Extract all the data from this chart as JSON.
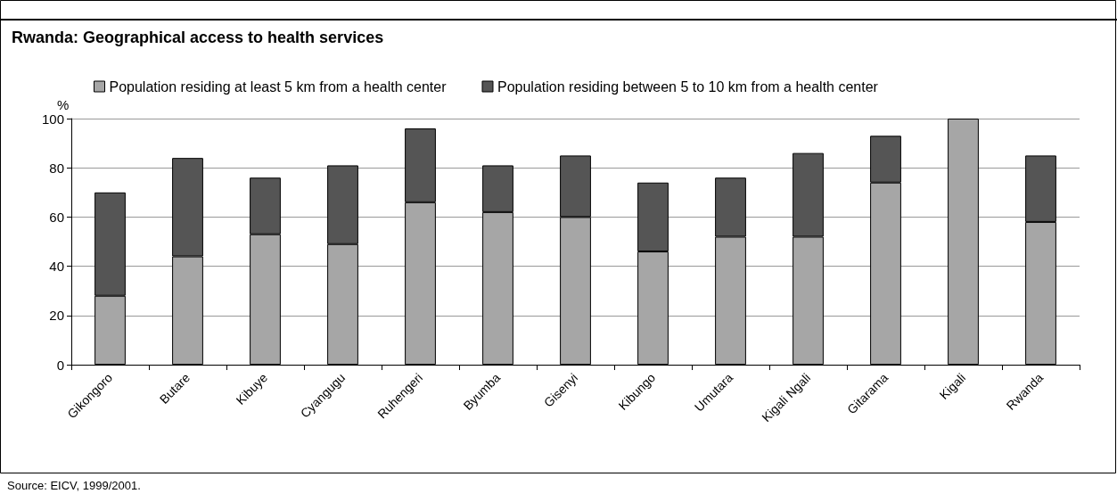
{
  "chart_data": {
    "type": "bar",
    "title": "Rwanda: Geographical access to health services",
    "ylabel": "%",
    "categories": [
      "Gikongoro",
      "Butare",
      "Kibuye",
      "Cyangugu",
      "Ruhengeri",
      "Byumba",
      "Gisenyi",
      "Kibungo",
      "Umutara",
      "Kigali Ngali",
      "Gitarama",
      "Kigali",
      "Rwanda"
    ],
    "series": [
      {
        "name": "Population residing at least 5 km from a health center",
        "color": "#a6a6a6",
        "values": [
          28,
          44,
          53,
          49,
          66,
          62,
          60,
          46,
          52,
          52,
          74,
          100,
          58
        ]
      },
      {
        "name": "Population residing between 5 to 10 km from a health center",
        "color": "#555555",
        "values": [
          42,
          40,
          23,
          32,
          30,
          19,
          25,
          28,
          24,
          34,
          19,
          null,
          27
        ]
      }
    ],
    "stacked": true,
    "ylim": [
      0,
      100
    ],
    "yticks": [
      0,
      20,
      40,
      60,
      80,
      100
    ],
    "grid": "y",
    "legend": "top left",
    "annotations": [
      "Source: EICV, 1999/2001."
    ]
  }
}
